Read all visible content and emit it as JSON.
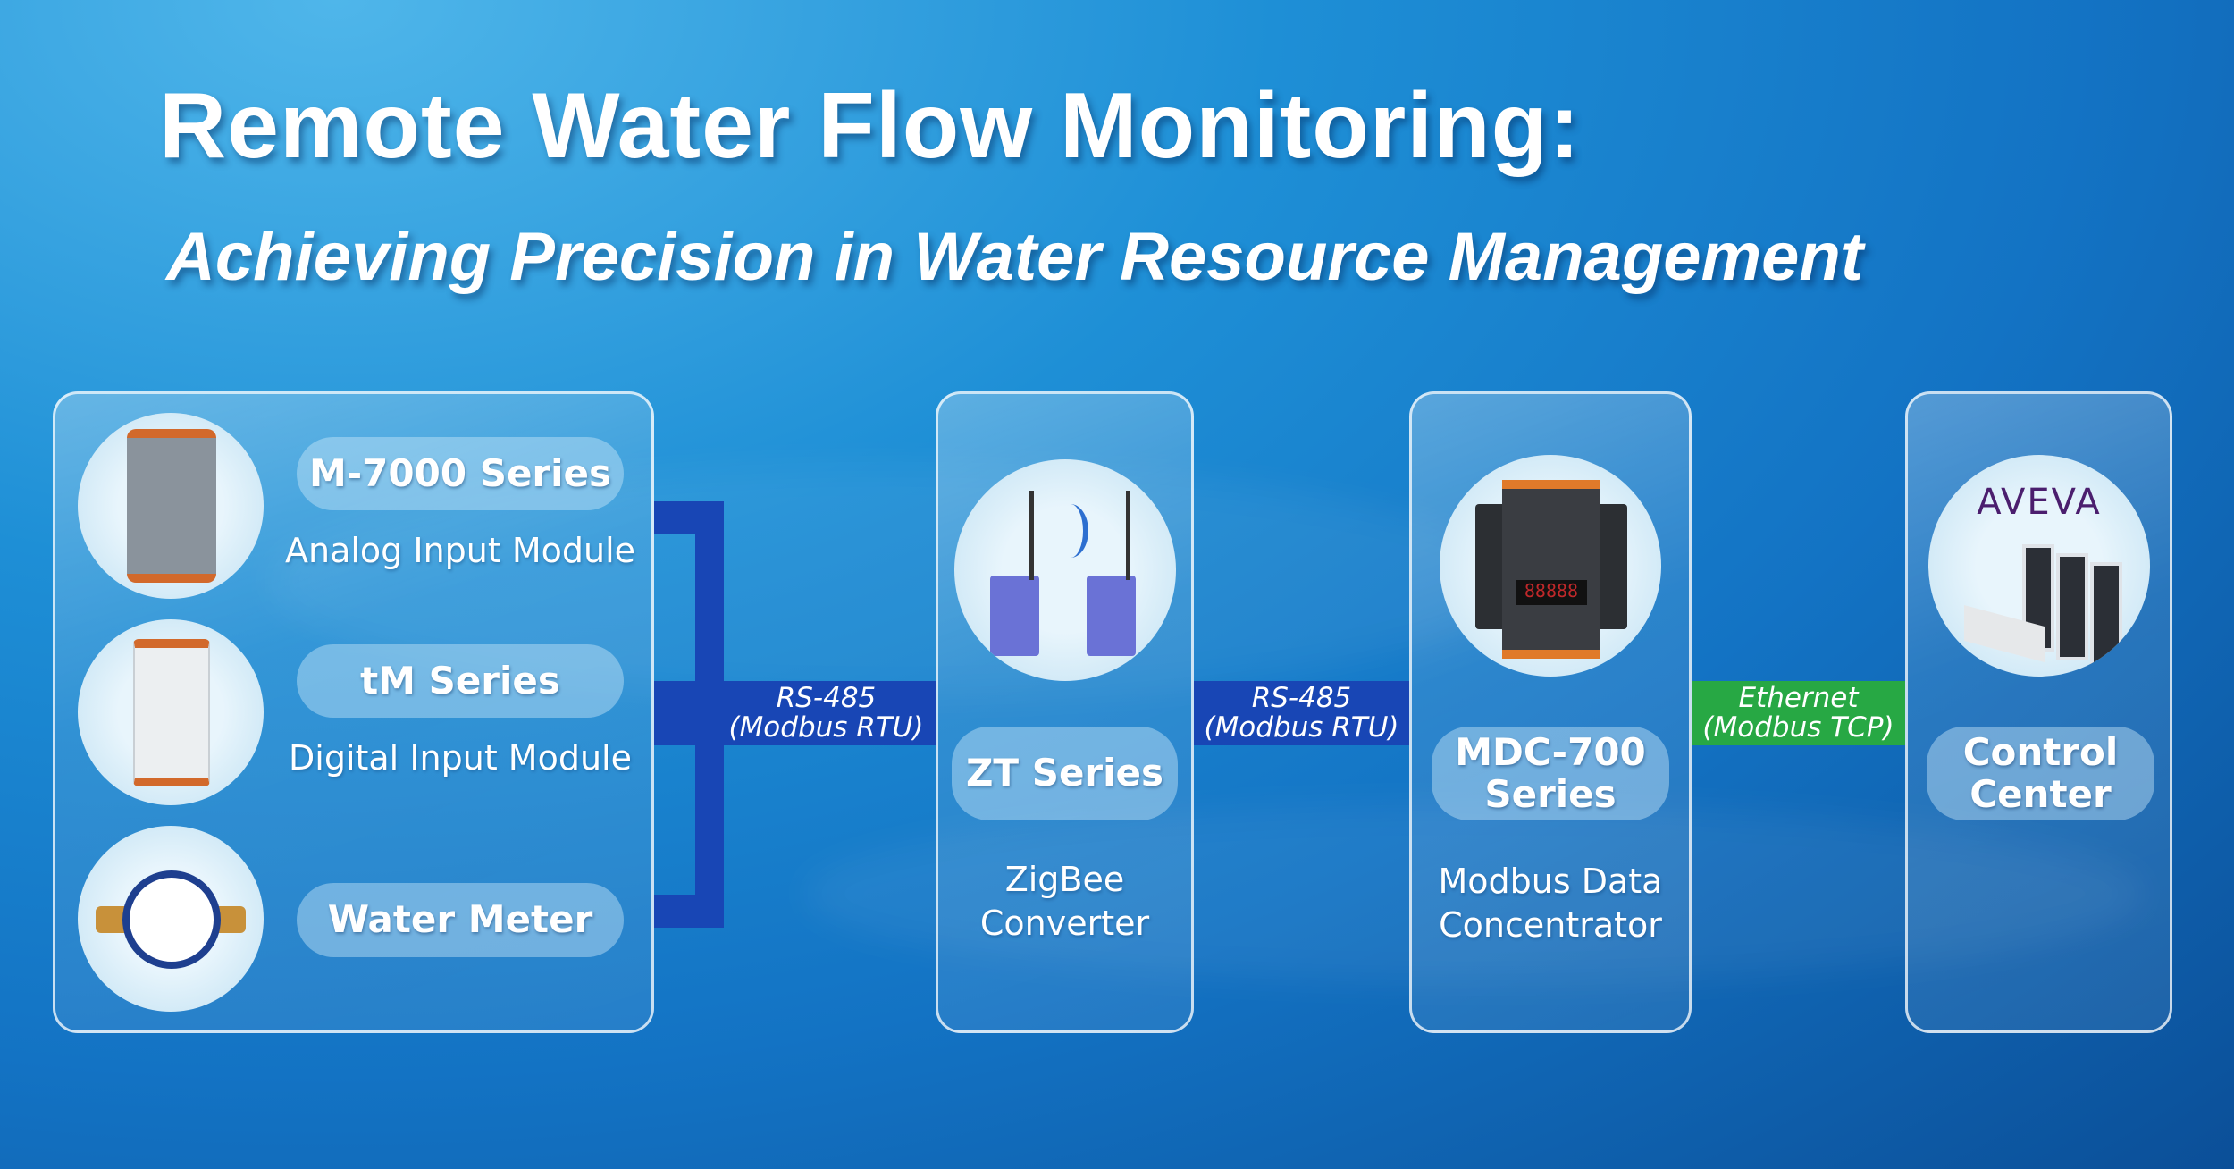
{
  "header": {
    "title": "Remote Water Flow Monitoring:",
    "subtitle": "Achieving Precision in Water Resource Management"
  },
  "field_devices": [
    {
      "name": "M-7000 Series",
      "description": "Analog Input Module",
      "icon": "io-module-image"
    },
    {
      "name": "tM Series",
      "description": "Digital Input Module",
      "icon": "tm-module-image"
    },
    {
      "name": "Water Meter",
      "icon": "water-meter-image"
    }
  ],
  "links": [
    {
      "line1": "RS-485",
      "line2": "(Modbus RTU)",
      "color": "#1846b5"
    },
    {
      "line1": "RS-485",
      "line2": "(Modbus RTU)",
      "color": "#1846b5"
    },
    {
      "line1": "Ethernet",
      "line2": "(Modbus TCP)",
      "color": "#27a844"
    }
  ],
  "nodes": [
    {
      "name": "ZT Series",
      "description_line1": "ZigBee",
      "description_line2": "Converter",
      "icon": "zigbee-converter-image"
    },
    {
      "name_line1": "MDC-700",
      "name_line2": "Series",
      "description_line1": "Modbus Data",
      "description_line2": "Concentrator",
      "icon": "mdc-device-image",
      "display": "88888"
    },
    {
      "name_line1": "Control",
      "name_line2": "Center",
      "logo": "AVEVA",
      "icon": "server-room-image"
    }
  ]
}
